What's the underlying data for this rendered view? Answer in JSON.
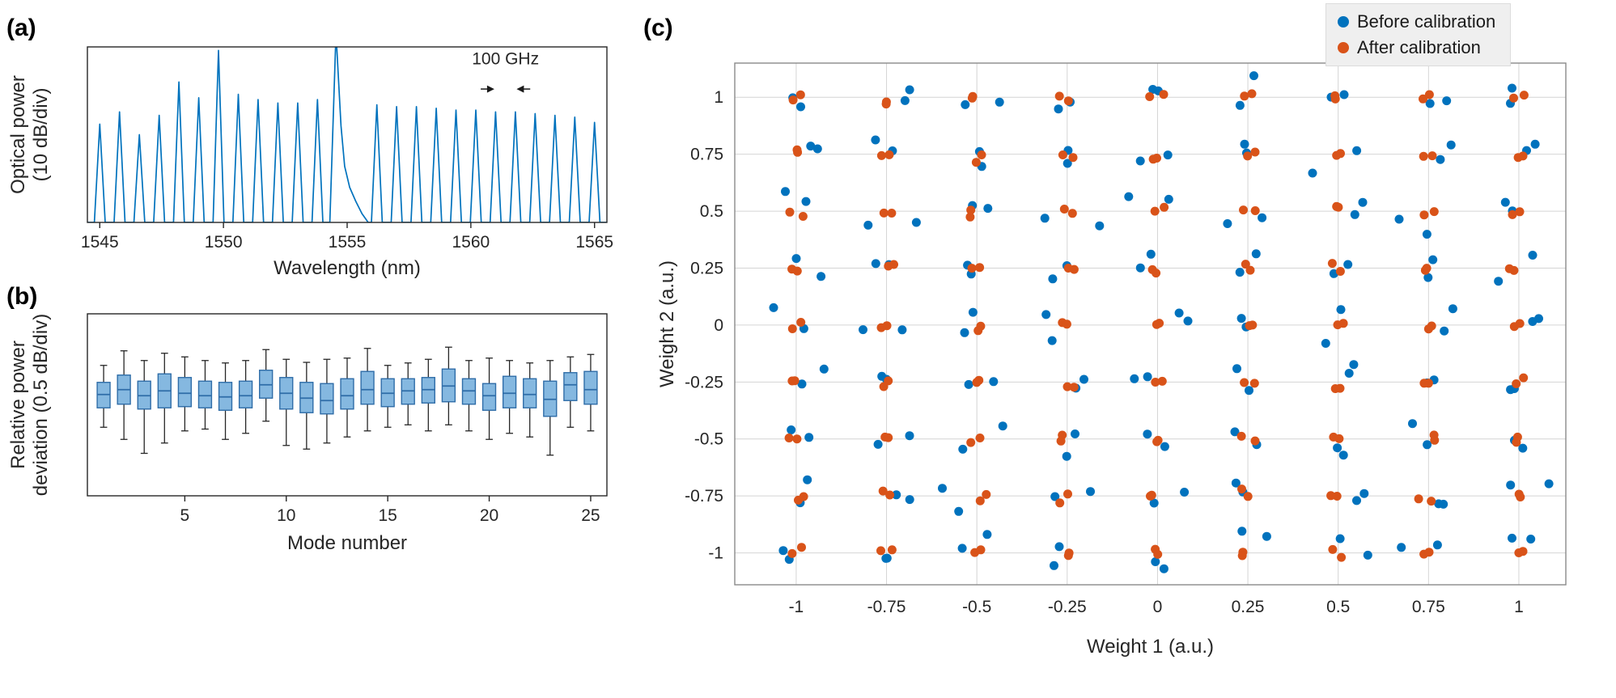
{
  "panels": {
    "a": {
      "label": "(a)"
    },
    "b": {
      "label": "(b)"
    },
    "c": {
      "label": "(c)"
    }
  },
  "legend": {
    "items": [
      {
        "label": "Before calibration",
        "color": "#0072BD"
      },
      {
        "label": "After calibration",
        "color": "#D95319"
      }
    ]
  },
  "chart_data": [
    {
      "id": "optical-spectrum",
      "type": "line",
      "panel": "a",
      "xlabel": "Wavelength (nm)",
      "ylabel_lines": [
        "Optical power",
        "(10 dB/div)"
      ],
      "xlim": [
        1544.5,
        1565.5
      ],
      "xticks": [
        1545,
        1550,
        1555,
        1560,
        1565
      ],
      "line_color": "#0072BD",
      "frame_color": "#262626",
      "peak_half_width_nm": 0.22,
      "peaks": [
        [
          1545.0,
          0.56
        ],
        [
          1545.8,
          0.63
        ],
        [
          1546.6,
          0.5
        ],
        [
          1547.4,
          0.61
        ],
        [
          1548.2,
          0.8
        ],
        [
          1549.0,
          0.71
        ],
        [
          1549.8,
          0.98
        ],
        [
          1550.6,
          0.73
        ],
        [
          1551.4,
          0.7
        ],
        [
          1552.2,
          0.68
        ],
        [
          1553.0,
          0.68
        ],
        [
          1553.8,
          0.7
        ],
        [
          1556.2,
          0.67
        ],
        [
          1557.0,
          0.66
        ],
        [
          1557.8,
          0.66
        ],
        [
          1558.6,
          0.65
        ],
        [
          1559.4,
          0.64
        ],
        [
          1560.2,
          0.64
        ],
        [
          1561.0,
          0.63
        ],
        [
          1561.8,
          0.63
        ],
        [
          1562.6,
          0.62
        ],
        [
          1563.4,
          0.61
        ],
        [
          1564.2,
          0.6
        ],
        [
          1565.0,
          0.57
        ]
      ],
      "pump_profile": [
        [
          1554.3,
          0
        ],
        [
          1554.55,
          1.08
        ],
        [
          1554.75,
          0.55
        ],
        [
          1554.9,
          0.32
        ],
        [
          1555.1,
          0.2
        ],
        [
          1555.35,
          0.12
        ],
        [
          1555.6,
          0.05
        ],
        [
          1555.85,
          0
        ]
      ],
      "annotation": {
        "text": "100 GHz",
        "x_center": 1561.4,
        "text_y_frac": 0.9,
        "arrow_y_frac": 0.76,
        "left_arrow_from": 1560.4,
        "left_arrow_to": 1560.95,
        "right_arrow_from": 1562.4,
        "right_arrow_to": 1561.85
      }
    },
    {
      "id": "power-deviation-boxplot",
      "type": "box",
      "panel": "b",
      "xlabel": "Mode number",
      "ylabel_lines": [
        "Relative power",
        "deviation (0.5 dB/div)"
      ],
      "xlim": [
        0.2,
        25.8
      ],
      "ylim": [
        -1.65,
        1.35
      ],
      "xticks": [
        5,
        10,
        15,
        20,
        25
      ],
      "frame_color": "#262626",
      "box_fill": "#85B8E0",
      "box_edge": "#2F6DA8",
      "median_color": "#2F6DA8",
      "whisker_color": "#262626",
      "boxes": [
        [
          -0.52,
          -0.2,
          0.02,
          0.22,
          0.5
        ],
        [
          -0.72,
          -0.14,
          0.1,
          0.34,
          0.74
        ],
        [
          -0.95,
          -0.22,
          0.0,
          0.24,
          0.58
        ],
        [
          -0.78,
          -0.2,
          0.08,
          0.36,
          0.7
        ],
        [
          -0.58,
          -0.18,
          0.04,
          0.3,
          0.64
        ],
        [
          -0.55,
          -0.2,
          0.0,
          0.24,
          0.58
        ],
        [
          -0.72,
          -0.24,
          -0.02,
          0.22,
          0.54
        ],
        [
          -0.62,
          -0.2,
          0.0,
          0.24,
          0.58
        ],
        [
          -0.42,
          -0.04,
          0.18,
          0.42,
          0.76
        ],
        [
          -0.82,
          -0.22,
          0.04,
          0.3,
          0.6
        ],
        [
          -0.88,
          -0.28,
          -0.04,
          0.22,
          0.55
        ],
        [
          -0.78,
          -0.3,
          -0.08,
          0.2,
          0.6
        ],
        [
          -0.68,
          -0.22,
          0.0,
          0.28,
          0.62
        ],
        [
          -0.58,
          -0.14,
          0.1,
          0.4,
          0.78
        ],
        [
          -0.52,
          -0.18,
          0.04,
          0.28,
          0.5
        ],
        [
          -0.48,
          -0.14,
          0.08,
          0.28,
          0.54
        ],
        [
          -0.58,
          -0.12,
          0.1,
          0.3,
          0.6
        ],
        [
          -0.48,
          -0.1,
          0.16,
          0.44,
          0.8
        ],
        [
          -0.58,
          -0.14,
          0.08,
          0.28,
          0.58
        ],
        [
          -0.72,
          -0.24,
          0.0,
          0.2,
          0.62
        ],
        [
          -0.62,
          -0.2,
          0.04,
          0.32,
          0.58
        ],
        [
          -0.68,
          -0.2,
          0.02,
          0.28,
          0.54
        ],
        [
          -0.98,
          -0.34,
          -0.06,
          0.24,
          0.58
        ],
        [
          -0.52,
          -0.08,
          0.18,
          0.38,
          0.64
        ],
        [
          -0.58,
          -0.14,
          0.1,
          0.4,
          0.68
        ]
      ]
    },
    {
      "id": "weight-calibration-scatter",
      "type": "scatter",
      "panel": "c",
      "xlabel": "Weight 1 (a.u.)",
      "ylabel": "Weight 2 (a.u.)",
      "grid_values": [
        -1,
        -0.75,
        -0.5,
        -0.25,
        0,
        0.25,
        0.5,
        0.75,
        1
      ],
      "tick_labels": [
        "-1",
        "-0.75",
        "-0.5",
        "-0.25",
        "0",
        "0.25",
        "0.5",
        "0.75",
        "1"
      ],
      "xlim": [
        -1.17,
        1.13
      ],
      "ylim": [
        -1.14,
        1.15
      ],
      "grid_color": "#d4d4d4",
      "frame_color": "#8a8a8a",
      "seed": 7,
      "series": [
        {
          "name": "Before calibration",
          "color": "#0072BD",
          "dots_per_point": 2,
          "spread": 0.04,
          "radius": 5.5
        },
        {
          "name": "After calibration",
          "color": "#D95319",
          "dots_per_point": 2,
          "spread": 0.013,
          "radius": 5.5
        }
      ]
    }
  ]
}
